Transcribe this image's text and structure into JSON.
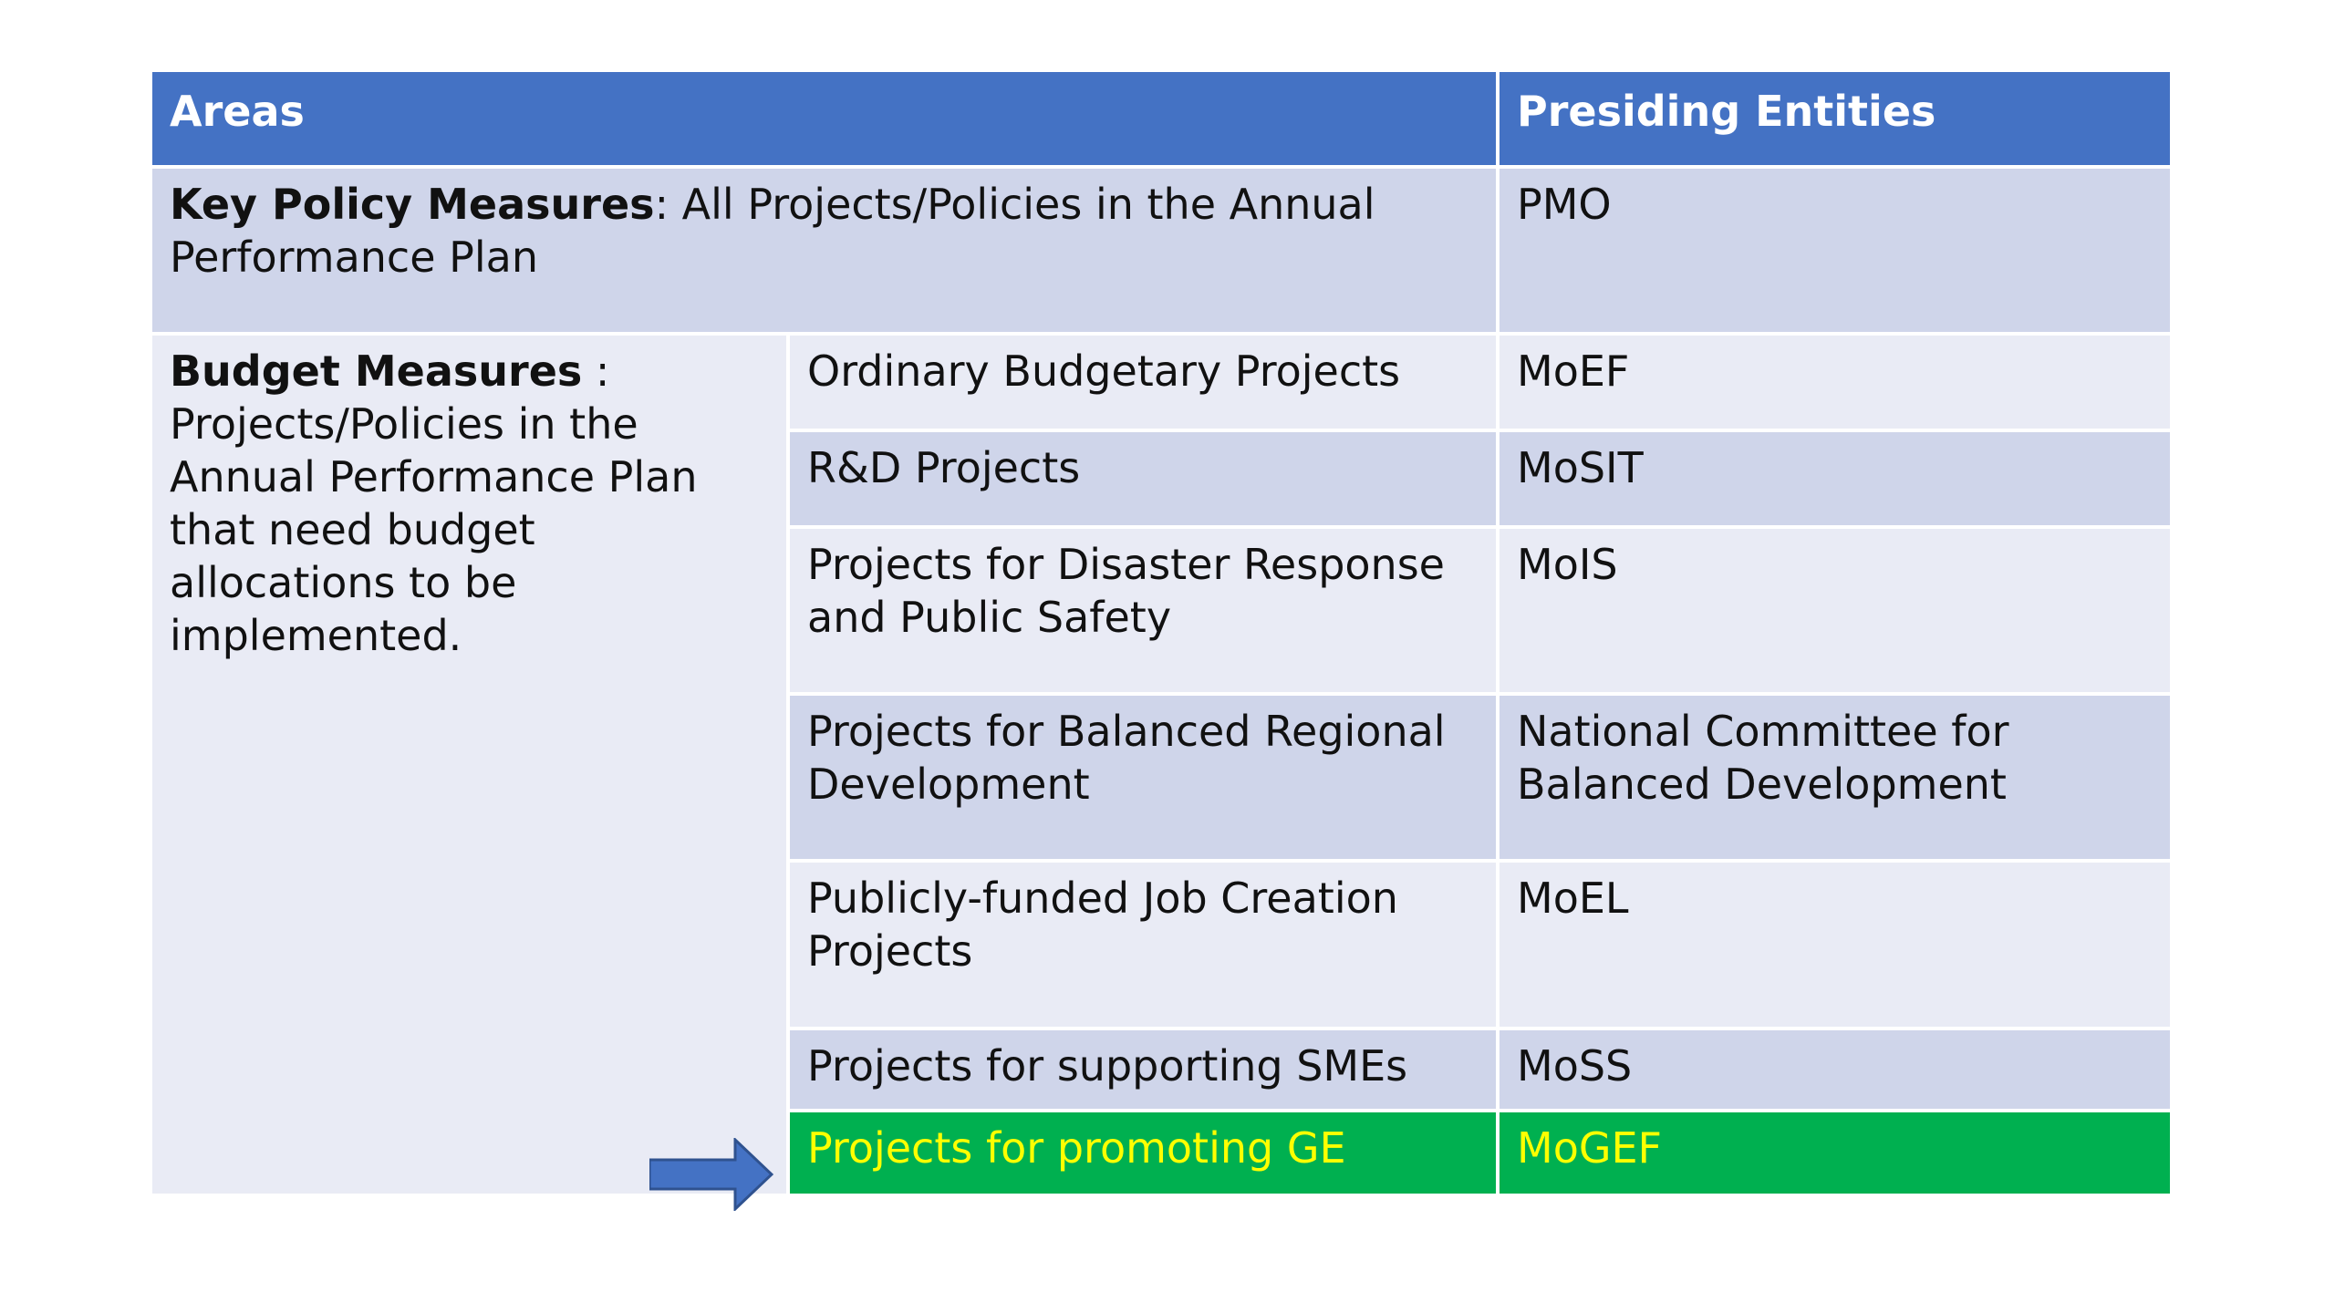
{
  "header": {
    "areas": "Areas",
    "entities": "Presiding Entities"
  },
  "key_policy": {
    "bold": "Key Policy Measures",
    "text": ": All Projects/Policies in the Annual Performance Plan",
    "entity": "PMO"
  },
  "budget": {
    "bold": "Budget Measures",
    "text": " : Projects/Policies in the Annual Performance Plan that need budget allocations to be implemented."
  },
  "rows": [
    {
      "project": "Ordinary Budgetary Projects",
      "entity": "MoEF"
    },
    {
      "project": "R&D Projects",
      "entity": "MoSIT"
    },
    {
      "project": "Projects for Disaster Response and Public Safety",
      "entity": "MoIS"
    },
    {
      "project": "Projects for Balanced Regional Development",
      "entity": "National Committee for Balanced Development"
    },
    {
      "project": "Publicly-funded Job Creation Projects",
      "entity": "MoEL"
    },
    {
      "project": "Projects for supporting SMEs",
      "entity": "MoSS"
    },
    {
      "project": "Projects for promoting GE",
      "entity": "MoGEF"
    }
  ],
  "colors": {
    "header": "#4472c4",
    "row_dark": "#cfd5ea",
    "row_light": "#e9ebf5",
    "highlight_bg": "#00b050",
    "highlight_text": "#ffff00",
    "arrow": "#4472c4"
  },
  "arrow_icon": "arrow-right-icon"
}
